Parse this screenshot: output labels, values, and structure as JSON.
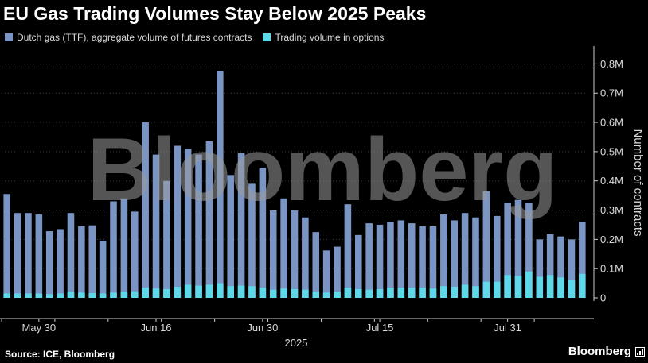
{
  "title": "EU Gas Trading Volumes Stay Below 2025 Peaks",
  "legend": [
    {
      "label": "Dutch gas (TTF), aggregate volume of futures contracts",
      "color": "#7a95c4"
    },
    {
      "label": "Trading volume in options",
      "color": "#5fd8ea"
    }
  ],
  "source": "Source: ICE, Bloomberg",
  "brand": "Bloomberg",
  "watermark": "Bloomberg",
  "chart_data": {
    "type": "bar",
    "stacking": "overlay",
    "title": "EU Gas Trading Volumes Stay Below 2025 Peaks",
    "xlabel": "2025",
    "ylabel": "Number of contracts",
    "ylim": [
      0,
      0.85
    ],
    "y_unit": "M",
    "y_ticks": [
      0,
      0.1,
      0.2,
      0.3,
      0.4,
      0.5,
      0.6,
      0.7,
      0.8
    ],
    "y_tick_labels": [
      "0",
      "0.1M",
      "0.2M",
      "0.3M",
      "0.4M",
      "0.5M",
      "0.6M",
      "0.7M",
      "0.8M"
    ],
    "x_tick_labels": [
      {
        "label": "May 30",
        "index": 3
      },
      {
        "label": "Jun 16",
        "index": 14
      },
      {
        "label": "Jun 30",
        "index": 24
      },
      {
        "label": "Jul 15",
        "index": 35
      },
      {
        "label": "Jul 31",
        "index": 47
      }
    ],
    "grid": "horizontal",
    "colors": {
      "futures": "#7a95c4",
      "options": "#5fd8ea",
      "grid": "#3a3a3a",
      "axis_text": "#d9d9d9"
    },
    "series": [
      {
        "name": "Dutch gas (TTF), aggregate volume of futures contracts",
        "values": [
          0.355,
          0.29,
          0.29,
          0.285,
          0.228,
          0.235,
          0.29,
          0.245,
          0.248,
          0.195,
          0.33,
          0.34,
          0.295,
          0.6,
          0.49,
          0.4,
          0.52,
          0.51,
          0.49,
          0.535,
          0.775,
          0.42,
          0.495,
          0.39,
          0.445,
          0.3,
          0.34,
          0.3,
          0.275,
          0.225,
          0.162,
          0.175,
          0.32,
          0.215,
          0.255,
          0.25,
          0.26,
          0.265,
          0.255,
          0.245,
          0.245,
          0.285,
          0.265,
          0.29,
          0.275,
          0.365,
          0.28,
          0.325,
          0.335,
          0.325,
          0.2,
          0.218,
          0.21,
          0.2,
          0.26
        ]
      },
      {
        "name": "Trading volume in options",
        "values": [
          0.015,
          0.015,
          0.015,
          0.015,
          0.013,
          0.015,
          0.02,
          0.018,
          0.016,
          0.015,
          0.018,
          0.02,
          0.022,
          0.035,
          0.032,
          0.03,
          0.038,
          0.045,
          0.042,
          0.045,
          0.05,
          0.04,
          0.042,
          0.04,
          0.035,
          0.028,
          0.032,
          0.03,
          0.028,
          0.022,
          0.018,
          0.02,
          0.035,
          0.03,
          0.028,
          0.03,
          0.035,
          0.035,
          0.035,
          0.035,
          0.032,
          0.04,
          0.038,
          0.045,
          0.04,
          0.055,
          0.055,
          0.078,
          0.075,
          0.09,
          0.072,
          0.078,
          0.07,
          0.062,
          0.082
        ]
      }
    ]
  }
}
